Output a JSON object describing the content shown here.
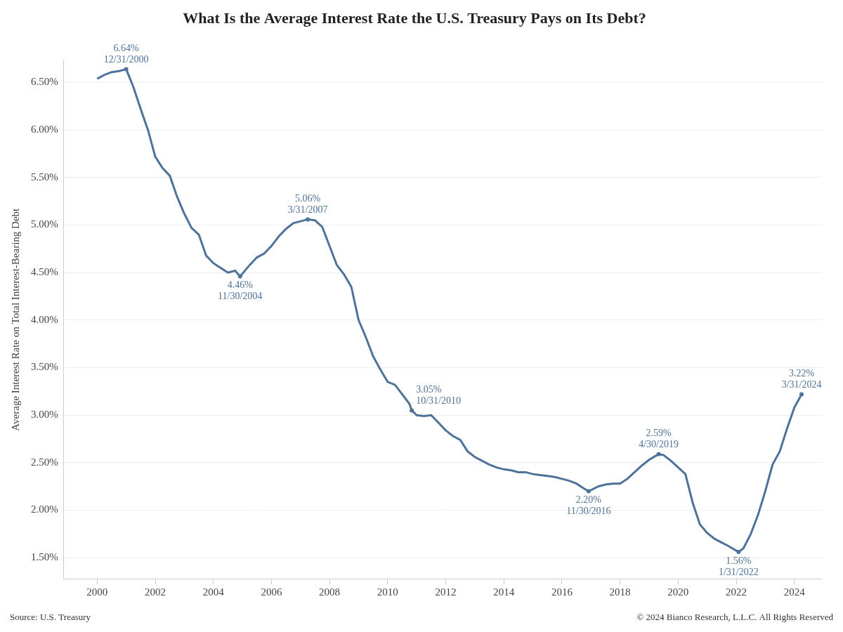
{
  "chart_data": {
    "type": "line",
    "title": "What Is the Average Interest Rate the U.S. Treasury Pays on Its Debt?",
    "y_label": "Average Interest Rate on Total Interest-Bearing Debt",
    "source": "Source: U.S. Treasury",
    "credit": "© 2024 Bianco Research, L.L.C. All Rights Reserved",
    "color": "#4e729a",
    "grid": true,
    "x": [
      2000.0,
      2000.25,
      2000.5,
      2000.75,
      2001.0,
      2001.25,
      2001.5,
      2001.75,
      2002.0,
      2002.25,
      2002.5,
      2002.75,
      2003.0,
      2003.25,
      2003.5,
      2003.75,
      2004.0,
      2004.25,
      2004.5,
      2004.75,
      2004.92,
      2005.25,
      2005.5,
      2005.75,
      2006.0,
      2006.25,
      2006.5,
      2006.75,
      2007.0,
      2007.25,
      2007.5,
      2007.75,
      2008.0,
      2008.25,
      2008.5,
      2008.75,
      2009.0,
      2009.25,
      2009.5,
      2009.75,
      2010.0,
      2010.25,
      2010.5,
      2010.75,
      2010.83,
      2011.0,
      2011.25,
      2011.5,
      2011.75,
      2012.0,
      2012.25,
      2012.5,
      2012.75,
      2013.0,
      2013.25,
      2013.5,
      2013.75,
      2014.0,
      2014.25,
      2014.5,
      2014.75,
      2015.0,
      2015.25,
      2015.5,
      2015.75,
      2016.0,
      2016.25,
      2016.5,
      2016.75,
      2016.92,
      2017.25,
      2017.5,
      2017.75,
      2018.0,
      2018.25,
      2018.5,
      2018.75,
      2019.0,
      2019.33,
      2019.5,
      2019.75,
      2020.0,
      2020.25,
      2020.5,
      2020.75,
      2021.0,
      2021.25,
      2021.5,
      2021.75,
      2022.08,
      2022.25,
      2022.5,
      2022.75,
      2023.0,
      2023.25,
      2023.5,
      2023.75,
      2024.0,
      2024.25
    ],
    "values": [
      6.54,
      6.58,
      6.61,
      6.62,
      6.64,
      6.45,
      6.22,
      6.0,
      5.72,
      5.6,
      5.52,
      5.3,
      5.12,
      4.97,
      4.9,
      4.68,
      4.6,
      4.55,
      4.5,
      4.52,
      4.46,
      4.58,
      4.66,
      4.7,
      4.78,
      4.88,
      4.96,
      5.02,
      5.04,
      5.06,
      5.05,
      4.98,
      4.78,
      4.58,
      4.48,
      4.35,
      4.0,
      3.82,
      3.62,
      3.48,
      3.35,
      3.32,
      3.22,
      3.12,
      3.05,
      3.0,
      2.99,
      3.0,
      2.92,
      2.84,
      2.78,
      2.74,
      2.62,
      2.56,
      2.52,
      2.48,
      2.45,
      2.43,
      2.42,
      2.4,
      2.4,
      2.38,
      2.37,
      2.36,
      2.35,
      2.33,
      2.31,
      2.28,
      2.23,
      2.2,
      2.25,
      2.27,
      2.28,
      2.28,
      2.33,
      2.4,
      2.47,
      2.53,
      2.59,
      2.58,
      2.52,
      2.45,
      2.38,
      2.08,
      1.85,
      1.76,
      1.7,
      1.66,
      1.62,
      1.56,
      1.6,
      1.75,
      1.95,
      2.2,
      2.48,
      2.62,
      2.86,
      3.08,
      3.22
    ],
    "xlim": [
      1998.85,
      2024.95
    ],
    "xticks": [
      2000,
      2002,
      2004,
      2006,
      2008,
      2010,
      2012,
      2014,
      2016,
      2018,
      2020,
      2022,
      2024
    ],
    "ylim": [
      1.28,
      6.73
    ],
    "yticks": [
      {
        "value": 1.5,
        "label": "1.50%"
      },
      {
        "value": 2.0,
        "label": "2.00%"
      },
      {
        "value": 2.5,
        "label": "2.50%"
      },
      {
        "value": 3.0,
        "label": "3.00%"
      },
      {
        "value": 3.5,
        "label": "3.50%"
      },
      {
        "value": 4.0,
        "label": "4.00%"
      },
      {
        "value": 4.5,
        "label": "4.50%"
      },
      {
        "value": 5.0,
        "label": "5.00%"
      },
      {
        "value": 5.5,
        "label": "5.50%"
      },
      {
        "value": 6.0,
        "label": "6.00%"
      },
      {
        "value": 6.5,
        "label": "6.50%"
      }
    ],
    "annotations": [
      {
        "x": 2001.0,
        "y": 6.64,
        "label": "6.64%",
        "date": "12/31/2000"
      },
      {
        "x": 2004.92,
        "y": 4.46,
        "label": "4.46%",
        "date": "11/30/2004"
      },
      {
        "x": 2007.25,
        "y": 5.06,
        "label": "5.06%",
        "date": "3/31/2007"
      },
      {
        "x": 2010.83,
        "y": 3.05,
        "label": "3.05%",
        "date": "10/31/2010"
      },
      {
        "x": 2016.92,
        "y": 2.2,
        "label": "2.20%",
        "date": "11/30/2016"
      },
      {
        "x": 2019.33,
        "y": 2.59,
        "label": "2.59%",
        "date": "4/30/2019"
      },
      {
        "x": 2022.08,
        "y": 1.56,
        "label": "1.56%",
        "date": "1/31/2022"
      },
      {
        "x": 2024.25,
        "y": 3.22,
        "label": "3.22%",
        "date": "3/31/2024"
      }
    ]
  }
}
